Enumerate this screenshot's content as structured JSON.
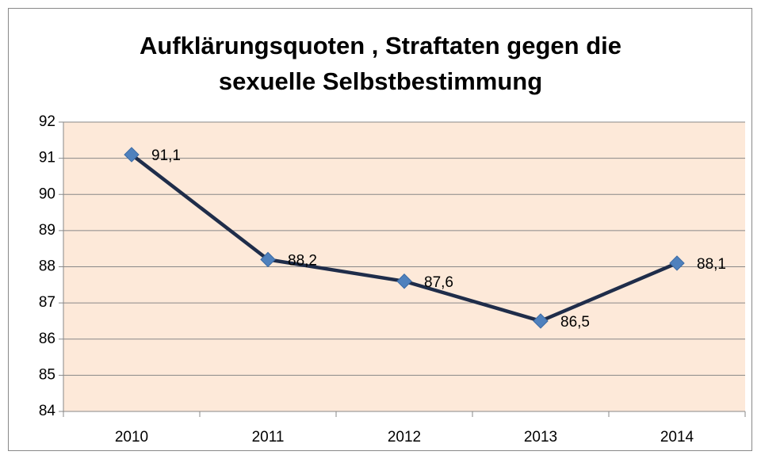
{
  "chart_data": {
    "type": "line",
    "title": [
      "Aufklärungsquoten , Straftaten gegen die",
      "sexuelle Selbstbestimmung"
    ],
    "categories": [
      "2010",
      "2011",
      "2012",
      "2013",
      "2014"
    ],
    "values": [
      91.1,
      88.2,
      87.6,
      86.5,
      88.1
    ],
    "value_labels": [
      "91,1",
      "88,2",
      "87,6",
      "86,5",
      "88,1"
    ],
    "color": "#1f2d4a",
    "marker_color": "#4f81bd",
    "ylim": [
      84,
      92
    ],
    "yticks": [
      84,
      85,
      86,
      87,
      88,
      89,
      90,
      91,
      92
    ],
    "grid": true
  }
}
